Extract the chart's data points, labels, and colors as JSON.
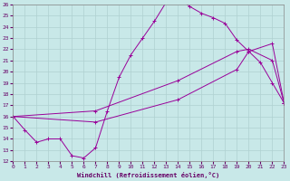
{
  "xlabel": "Windchill (Refroidissement éolien,°C)",
  "bg_color": "#c8e8e8",
  "grid_color": "#afd0d0",
  "line_color": "#990099",
  "xlim": [
    0,
    23
  ],
  "ylim": [
    12,
    26
  ],
  "xticks": [
    0,
    1,
    2,
    3,
    4,
    5,
    6,
    7,
    8,
    9,
    10,
    11,
    12,
    13,
    14,
    15,
    16,
    17,
    18,
    19,
    20,
    21,
    22,
    23
  ],
  "yticks": [
    12,
    13,
    14,
    15,
    16,
    17,
    18,
    19,
    20,
    21,
    22,
    23,
    24,
    25,
    26
  ],
  "line1_x": [
    0,
    1,
    2,
    3,
    4,
    5,
    6,
    7,
    8,
    9,
    10,
    11,
    12,
    13,
    14,
    15,
    16,
    17,
    18,
    19,
    20,
    21,
    22,
    23
  ],
  "line1_y": [
    16.0,
    14.8,
    13.7,
    14.0,
    14.0,
    12.5,
    12.3,
    13.2,
    16.5,
    19.5,
    21.5,
    23.0,
    24.5,
    26.2,
    26.6,
    25.8,
    25.2,
    24.8,
    24.3,
    22.8,
    21.8,
    20.8,
    19.0,
    17.2
  ],
  "line2_x": [
    0,
    7,
    14,
    19,
    20,
    22,
    23
  ],
  "line2_y": [
    16.0,
    16.5,
    19.2,
    21.8,
    22.0,
    21.0,
    17.2
  ],
  "line3_x": [
    0,
    7,
    14,
    19,
    20,
    22,
    23
  ],
  "line3_y": [
    16.0,
    15.5,
    17.5,
    20.2,
    21.8,
    22.5,
    17.2
  ]
}
